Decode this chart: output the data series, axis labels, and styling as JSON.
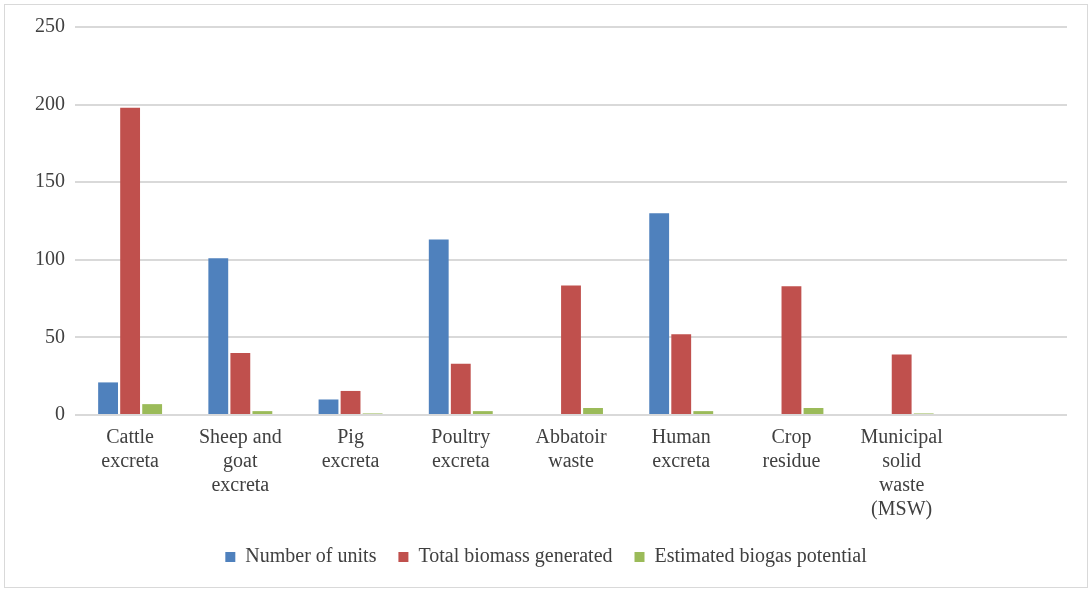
{
  "chart_data": {
    "type": "bar",
    "categories": [
      "Cattle excreta",
      "Sheep and goat excreta",
      "Pig excreta",
      "Poultry excreta",
      "Abbatoir waste",
      "Human excreta",
      "Crop residue",
      "Municipal solid waste (MSW)",
      null
    ],
    "series": [
      {
        "name": "Number of units",
        "color": "#4f81bd",
        "values": [
          21,
          101,
          10,
          113,
          null,
          130,
          null,
          null,
          null
        ]
      },
      {
        "name": "Total biomass generated",
        "color": "#c0504d",
        "values": [
          198,
          40,
          15.5,
          33,
          83.5,
          52,
          83,
          39,
          null
        ]
      },
      {
        "name": "Estimated biogas potential",
        "color": "#9bbb59",
        "values": [
          7,
          2.5,
          1,
          2.5,
          4.5,
          2.5,
          4.5,
          1,
          null
        ]
      }
    ],
    "ylim": [
      0,
      250
    ],
    "yticks": [
      0,
      50,
      100,
      150,
      200,
      250
    ],
    "grid": "y",
    "legend": "bottom"
  }
}
